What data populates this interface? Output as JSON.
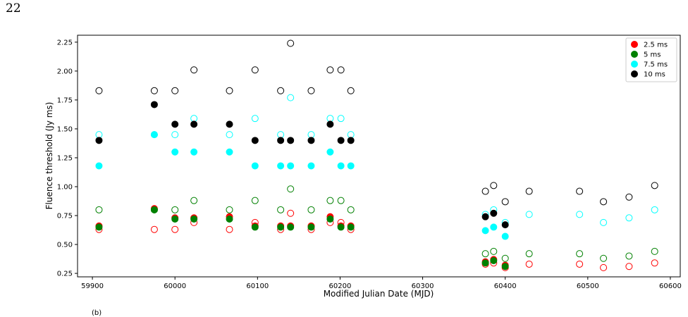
{
  "page": {
    "number": "22",
    "footer_text": "(b)"
  },
  "chart_data": {
    "type": "scatter",
    "xlabel": "Modified Julian Date (MJD)",
    "ylabel": "Fluence threshold (Jy ms)",
    "xlim": [
      59882,
      60612
    ],
    "ylim": [
      0.22,
      2.31
    ],
    "xticks": [
      59900,
      60000,
      60100,
      60200,
      60300,
      60400,
      60500,
      60600
    ],
    "yticks": [
      0.25,
      0.5,
      0.75,
      1.0,
      1.25,
      1.5,
      1.75,
      2.0,
      2.25
    ],
    "ytick_labels": [
      "0.25",
      "0.50",
      "0.75",
      "1.00",
      "1.25",
      "1.50",
      "1.75",
      "2.00",
      "2.25"
    ],
    "legend_position": "top-right",
    "grid": false,
    "series": [
      {
        "name": "2.5 ms",
        "color": "#ff0000",
        "open": [
          [
            59908,
            0.63
          ],
          [
            59975,
            0.63
          ],
          [
            60000,
            0.63
          ],
          [
            60023,
            0.69
          ],
          [
            60066,
            0.63
          ],
          [
            60097,
            0.69
          ],
          [
            60128,
            0.63
          ],
          [
            60140,
            0.77
          ],
          [
            60165,
            0.63
          ],
          [
            60188,
            0.69
          ],
          [
            60201,
            0.69
          ],
          [
            60213,
            0.63
          ],
          [
            60376,
            0.33
          ],
          [
            60386,
            0.34
          ],
          [
            60400,
            0.3
          ],
          [
            60429,
            0.33
          ],
          [
            60490,
            0.33
          ],
          [
            60519,
            0.3
          ],
          [
            60550,
            0.31
          ],
          [
            60581,
            0.34
          ]
        ],
        "filled": [
          [
            59908,
            0.66
          ],
          [
            59975,
            0.81
          ],
          [
            60000,
            0.73
          ],
          [
            60023,
            0.73
          ],
          [
            60066,
            0.74
          ],
          [
            60097,
            0.66
          ],
          [
            60128,
            0.66
          ],
          [
            60140,
            0.66
          ],
          [
            60165,
            0.66
          ],
          [
            60188,
            0.74
          ],
          [
            60201,
            0.66
          ],
          [
            60213,
            0.66
          ],
          [
            60376,
            0.35
          ],
          [
            60386,
            0.37
          ],
          [
            60400,
            0.32
          ]
        ]
      },
      {
        "name": "5 ms",
        "color": "#008000",
        "open": [
          [
            59908,
            0.8
          ],
          [
            59975,
            0.8
          ],
          [
            60000,
            0.8
          ],
          [
            60023,
            0.88
          ],
          [
            60066,
            0.8
          ],
          [
            60097,
            0.88
          ],
          [
            60128,
            0.8
          ],
          [
            60140,
            0.98
          ],
          [
            60165,
            0.8
          ],
          [
            60188,
            0.88
          ],
          [
            60201,
            0.88
          ],
          [
            60213,
            0.8
          ],
          [
            60376,
            0.42
          ],
          [
            60386,
            0.44
          ],
          [
            60400,
            0.38
          ],
          [
            60429,
            0.42
          ],
          [
            60490,
            0.42
          ],
          [
            60519,
            0.38
          ],
          [
            60550,
            0.4
          ],
          [
            60581,
            0.44
          ]
        ],
        "filled": [
          [
            59908,
            0.65
          ],
          [
            59975,
            0.8
          ],
          [
            60000,
            0.72
          ],
          [
            60023,
            0.72
          ],
          [
            60066,
            0.72
          ],
          [
            60097,
            0.65
          ],
          [
            60128,
            0.65
          ],
          [
            60140,
            0.65
          ],
          [
            60165,
            0.65
          ],
          [
            60188,
            0.72
          ],
          [
            60201,
            0.65
          ],
          [
            60213,
            0.65
          ],
          [
            60376,
            0.34
          ],
          [
            60386,
            0.36
          ],
          [
            60400,
            0.31
          ]
        ]
      },
      {
        "name": "7.5 ms",
        "color": "#00ffff",
        "open": [
          [
            59908,
            1.45
          ],
          [
            59975,
            1.45
          ],
          [
            60000,
            1.45
          ],
          [
            60023,
            1.59
          ],
          [
            60066,
            1.45
          ],
          [
            60097,
            1.59
          ],
          [
            60128,
            1.45
          ],
          [
            60140,
            1.77
          ],
          [
            60165,
            1.45
          ],
          [
            60188,
            1.59
          ],
          [
            60201,
            1.59
          ],
          [
            60213,
            1.45
          ],
          [
            60376,
            0.76
          ],
          [
            60386,
            0.8
          ],
          [
            60400,
            0.69
          ],
          [
            60429,
            0.76
          ],
          [
            60490,
            0.76
          ],
          [
            60519,
            0.69
          ],
          [
            60550,
            0.73
          ],
          [
            60581,
            0.8
          ]
        ],
        "filled": [
          [
            59908,
            1.18
          ],
          [
            59975,
            1.45
          ],
          [
            60000,
            1.3
          ],
          [
            60023,
            1.3
          ],
          [
            60066,
            1.3
          ],
          [
            60097,
            1.18
          ],
          [
            60128,
            1.18
          ],
          [
            60140,
            1.18
          ],
          [
            60165,
            1.18
          ],
          [
            60188,
            1.3
          ],
          [
            60201,
            1.18
          ],
          [
            60213,
            1.18
          ],
          [
            60376,
            0.62
          ],
          [
            60386,
            0.65
          ],
          [
            60400,
            0.57
          ]
        ]
      },
      {
        "name": "10 ms",
        "color": "#000000",
        "open": [
          [
            59908,
            1.83
          ],
          [
            59975,
            1.83
          ],
          [
            60000,
            1.83
          ],
          [
            60023,
            2.01
          ],
          [
            60066,
            1.83
          ],
          [
            60097,
            2.01
          ],
          [
            60128,
            1.83
          ],
          [
            60140,
            2.24
          ],
          [
            60165,
            1.83
          ],
          [
            60188,
            2.01
          ],
          [
            60201,
            2.01
          ],
          [
            60213,
            1.83
          ],
          [
            60376,
            0.96
          ],
          [
            60386,
            1.01
          ],
          [
            60400,
            0.87
          ],
          [
            60429,
            0.96
          ],
          [
            60490,
            0.96
          ],
          [
            60519,
            0.87
          ],
          [
            60550,
            0.91
          ],
          [
            60581,
            1.01
          ]
        ],
        "filled": [
          [
            59908,
            1.4
          ],
          [
            59975,
            1.71
          ],
          [
            60000,
            1.54
          ],
          [
            60023,
            1.54
          ],
          [
            60066,
            1.54
          ],
          [
            60097,
            1.4
          ],
          [
            60128,
            1.4
          ],
          [
            60140,
            1.4
          ],
          [
            60165,
            1.4
          ],
          [
            60188,
            1.54
          ],
          [
            60201,
            1.4
          ],
          [
            60213,
            1.4
          ],
          [
            60376,
            0.74
          ],
          [
            60386,
            0.77
          ],
          [
            60400,
            0.67
          ]
        ]
      }
    ]
  }
}
